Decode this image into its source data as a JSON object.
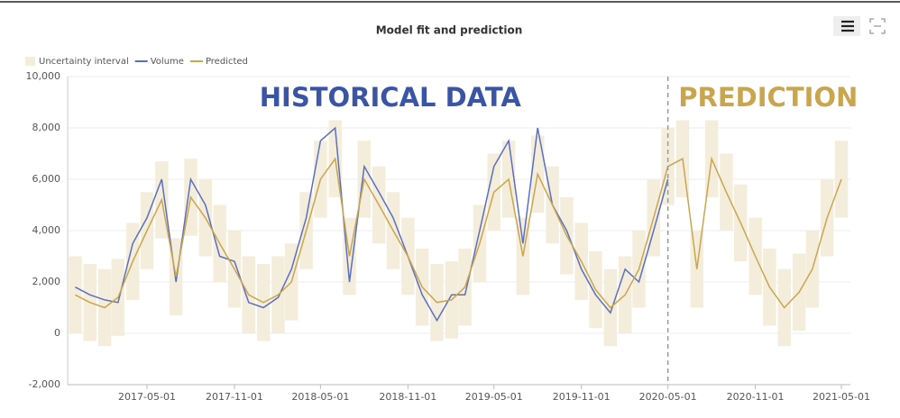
{
  "chart_data": {
    "type": "line",
    "title": "Model fit and prediction",
    "x": [
      "2016-12-01",
      "2017-01-01",
      "2017-02-01",
      "2017-03-01",
      "2017-04-01",
      "2017-05-01",
      "2017-06-01",
      "2017-07-01",
      "2017-08-01",
      "2017-09-01",
      "2017-10-01",
      "2017-11-01",
      "2017-12-01",
      "2018-01-01",
      "2018-02-01",
      "2018-03-01",
      "2018-04-01",
      "2018-05-01",
      "2018-06-01",
      "2018-07-01",
      "2018-08-01",
      "2018-09-01",
      "2018-10-01",
      "2018-11-01",
      "2018-12-01",
      "2019-01-01",
      "2019-02-01",
      "2019-03-01",
      "2019-04-01",
      "2019-05-01",
      "2019-06-01",
      "2019-07-01",
      "2019-08-01",
      "2019-09-01",
      "2019-10-01",
      "2019-11-01",
      "2019-12-01",
      "2020-01-01",
      "2020-02-01",
      "2020-03-01",
      "2020-04-01",
      "2020-05-01",
      "2020-06-01",
      "2020-07-01",
      "2020-08-01",
      "2020-09-01",
      "2020-10-01",
      "2020-11-01",
      "2020-12-01",
      "2021-01-01",
      "2021-02-01",
      "2021-03-01",
      "2021-04-01",
      "2021-05-01"
    ],
    "series": [
      {
        "name": "Uncertainty interval",
        "color": "#f4eddb",
        "upper": [
          3000,
          2700,
          2500,
          2900,
          4300,
          5500,
          6700,
          3700,
          6800,
          6000,
          5000,
          4000,
          3000,
          2700,
          3000,
          3500,
          5500,
          7500,
          8300,
          4500,
          7500,
          6500,
          5500,
          4500,
          3300,
          2700,
          2800,
          3300,
          5000,
          7000,
          7500,
          4500,
          7700,
          6500,
          5300,
          4300,
          3200,
          2500,
          3000,
          4000,
          6000,
          8000,
          8300,
          4000,
          8300,
          7000,
          5800,
          4500,
          3300,
          2500,
          3100,
          4000,
          6000,
          7500
        ],
        "lower": [
          0,
          -300,
          -500,
          -100,
          1300,
          2500,
          3700,
          700,
          3800,
          3000,
          2000,
          1000,
          0,
          -300,
          0,
          500,
          2500,
          4500,
          5300,
          1500,
          4500,
          3500,
          2500,
          1500,
          300,
          -300,
          -200,
          300,
          2000,
          4000,
          4500,
          1500,
          4700,
          3500,
          2300,
          1300,
          200,
          -500,
          0,
          1000,
          3000,
          5000,
          5300,
          1000,
          5300,
          4000,
          2800,
          1500,
          300,
          -500,
          100,
          1000,
          3000,
          4500
        ]
      },
      {
        "name": "Volume",
        "color": "#5b6fc0",
        "values": [
          1800,
          1500,
          1300,
          1200,
          3500,
          4500,
          6000,
          2000,
          6000,
          5000,
          3000,
          2800,
          1200,
          1000,
          1400,
          2500,
          4500,
          7500,
          8000,
          2000,
          6500,
          5500,
          4500,
          3000,
          1500,
          500,
          1500,
          1500,
          4000,
          6500,
          7500,
          3500,
          8000,
          5000,
          4000,
          2500,
          1500,
          800,
          2500,
          2000,
          4000,
          6000,
          null,
          null,
          null,
          null,
          null,
          null,
          null,
          null,
          null,
          null,
          null,
          null
        ]
      },
      {
        "name": "Predicted",
        "color": "#c9a54e",
        "values": [
          1500,
          1200,
          1000,
          1400,
          2800,
          4000,
          5200,
          2200,
          5300,
          4500,
          3500,
          2500,
          1500,
          1200,
          1500,
          2000,
          4000,
          6000,
          6800,
          3000,
          6000,
          5000,
          4000,
          3000,
          1800,
          1200,
          1300,
          1800,
          3500,
          5500,
          6000,
          3000,
          6200,
          5000,
          3800,
          2800,
          1700,
          1000,
          1500,
          2500,
          4500,
          6500,
          6800,
          2500,
          6800,
          5500,
          4300,
          3000,
          1800,
          1000,
          1600,
          2500,
          4500,
          6000
        ]
      }
    ],
    "xlim": [
      "2016-11-15",
      "2021-05-20"
    ],
    "xticks": [
      "2017-05-01",
      "2017-11-01",
      "2018-05-01",
      "2018-11-01",
      "2019-05-01",
      "2019-11-01",
      "2020-05-01",
      "2020-11-01",
      "2021-05-01"
    ],
    "ylim": [
      -2000,
      10000
    ],
    "yticks": [
      {
        "value": -2000,
        "label": "-2,000"
      },
      0,
      {
        "value": 2000,
        "label": "2,000"
      },
      {
        "value": 4000,
        "label": "4,000"
      },
      {
        "value": 6000,
        "label": "6,000"
      },
      {
        "value": 8000,
        "label": "8,000"
      },
      {
        "value": 10000,
        "label": "10,000"
      }
    ],
    "grid": true,
    "divider": "2020-05-01",
    "annotations": [
      {
        "text": "HISTORICAL DATA",
        "color": "#3a55a6"
      },
      {
        "text": "PREDICTION",
        "color": "#c9a54e"
      }
    ]
  }
}
